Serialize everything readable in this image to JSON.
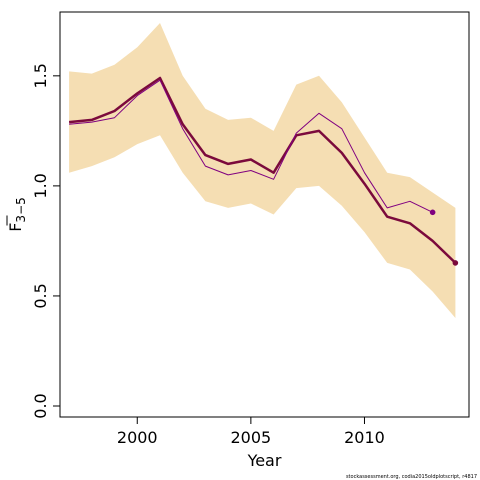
{
  "chart_data": {
    "type": "line",
    "xlabel": "Year",
    "ylabel": "F",
    "ylabel_subscript": "3−5",
    "xlim": [
      1996.6,
      2014.6
    ],
    "ylim": [
      -0.05,
      1.79
    ],
    "xticks": [
      2000,
      2005,
      2010
    ],
    "yticks": [
      0.0,
      0.5,
      1.0,
      1.5
    ],
    "ytick_labels": [
      "0.0",
      "0.5",
      "1.0",
      "1.5"
    ],
    "grid": false,
    "series": [
      {
        "role": "confidence-band",
        "color": "#F5DEB3",
        "x": [
          1997,
          1998,
          1999,
          2000,
          2001,
          2002,
          2003,
          2004,
          2005,
          2006,
          2007,
          2008,
          2009,
          2010,
          2011,
          2012,
          2013,
          2014
        ],
        "lower": [
          1.06,
          1.09,
          1.13,
          1.19,
          1.23,
          1.06,
          0.93,
          0.9,
          0.92,
          0.87,
          0.99,
          1.0,
          0.91,
          0.79,
          0.65,
          0.62,
          0.52,
          0.4
        ],
        "upper": [
          1.52,
          1.51,
          1.55,
          1.63,
          1.74,
          1.5,
          1.35,
          1.3,
          1.31,
          1.25,
          1.46,
          1.5,
          1.38,
          1.22,
          1.06,
          1.04,
          0.97,
          0.9
        ]
      },
      {
        "role": "estimate",
        "color": "#7B0A3C",
        "x": [
          1997,
          1998,
          1999,
          2000,
          2001,
          2002,
          2003,
          2004,
          2005,
          2006,
          2007,
          2008,
          2009,
          2010,
          2011,
          2012,
          2013,
          2014
        ],
        "values": [
          1.29,
          1.3,
          1.34,
          1.42,
          1.49,
          1.28,
          1.14,
          1.1,
          1.12,
          1.06,
          1.23,
          1.25,
          1.15,
          1.01,
          0.86,
          0.83,
          0.75,
          0.65
        ]
      },
      {
        "role": "previous-assessment",
        "color": "#800080",
        "x": [
          1997,
          1998,
          1999,
          2000,
          2001,
          2002,
          2003,
          2004,
          2005,
          2006,
          2007,
          2008,
          2009,
          2010,
          2011,
          2012,
          2013
        ],
        "values": [
          1.28,
          1.29,
          1.31,
          1.41,
          1.48,
          1.26,
          1.09,
          1.05,
          1.07,
          1.03,
          1.24,
          1.33,
          1.26,
          1.06,
          0.9,
          0.93,
          0.88
        ]
      }
    ]
  },
  "credit": "stockassessment.org, codia2015oldplotscript, r4817"
}
